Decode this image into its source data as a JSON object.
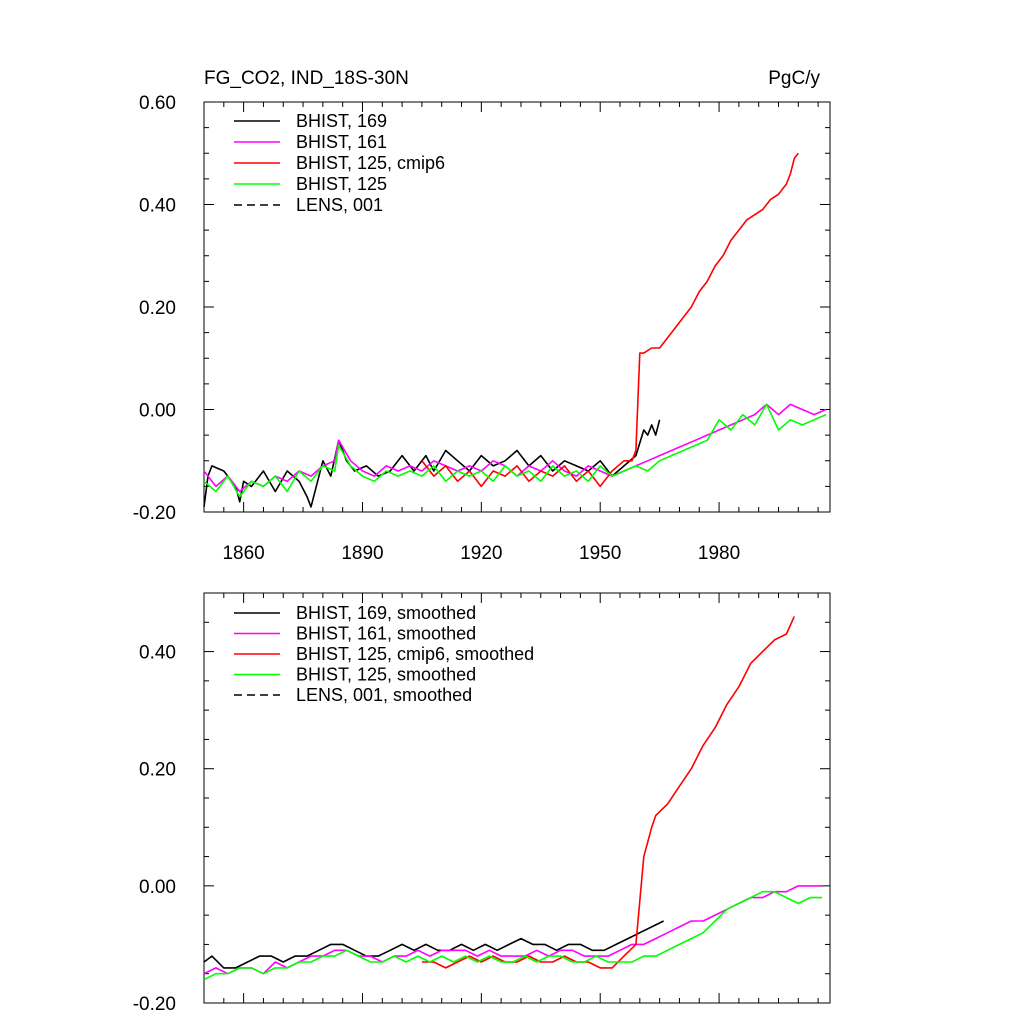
{
  "chart_data": [
    {
      "type": "line",
      "title": "FG_CO2, IND_18S-30N",
      "units": "PgC/y",
      "xlim": [
        1850,
        2008
      ],
      "ylim": [
        -0.2,
        0.6
      ],
      "xticks": [
        1860,
        1890,
        1920,
        1950,
        1980
      ],
      "xtick_labels": [
        "1860",
        "1890",
        "1920",
        "1950",
        "1980"
      ],
      "xticks_labeled": true,
      "yticks": [
        -0.2,
        0.0,
        0.2,
        0.4,
        0.6
      ],
      "ytick_labels": [
        "-0.20",
        "0.00",
        "0.20",
        "0.40",
        "0.60"
      ],
      "series": [
        {
          "name": "BHIST, 169",
          "color": "#000000",
          "dash": false,
          "x": [
            1850,
            1851,
            1852,
            1855,
            1858,
            1859,
            1860,
            1862,
            1865,
            1868,
            1871,
            1874,
            1876,
            1877,
            1880,
            1882,
            1884,
            1886,
            1888,
            1891,
            1894,
            1897,
            1900,
            1903,
            1906,
            1908,
            1911,
            1914,
            1917,
            1920,
            1923,
            1926,
            1929,
            1932,
            1935,
            1938,
            1941,
            1944,
            1947,
            1950,
            1953,
            1956,
            1959,
            1961,
            1962,
            1963,
            1964,
            1965
          ],
          "y": [
            -0.19,
            -0.13,
            -0.11,
            -0.12,
            -0.15,
            -0.18,
            -0.14,
            -0.15,
            -0.12,
            -0.16,
            -0.12,
            -0.14,
            -0.17,
            -0.19,
            -0.1,
            -0.13,
            -0.06,
            -0.1,
            -0.12,
            -0.11,
            -0.13,
            -0.12,
            -0.09,
            -0.12,
            -0.09,
            -0.12,
            -0.08,
            -0.1,
            -0.12,
            -0.09,
            -0.11,
            -0.1,
            -0.08,
            -0.11,
            -0.09,
            -0.12,
            -0.1,
            -0.11,
            -0.12,
            -0.1,
            -0.13,
            -0.11,
            -0.09,
            -0.04,
            -0.05,
            -0.03,
            -0.05,
            -0.02
          ]
        },
        {
          "name": "BHIST, 161",
          "color": "#ff00ff",
          "dash": false,
          "x": [
            1850,
            1853,
            1856,
            1859,
            1862,
            1865,
            1868,
            1871,
            1874,
            1877,
            1880,
            1883,
            1884,
            1887,
            1890,
            1893,
            1896,
            1899,
            1902,
            1905,
            1908,
            1911,
            1914,
            1917,
            1920,
            1923,
            1926,
            1929,
            1932,
            1935,
            1938,
            1941,
            1944,
            1947,
            1950,
            1953,
            1956,
            1959,
            1962,
            1965,
            1968,
            1971,
            1974,
            1977,
            1980,
            1983,
            1986,
            1989,
            1992,
            1995,
            1998,
            2001,
            2004,
            2007
          ],
          "y": [
            -0.12,
            -0.15,
            -0.13,
            -0.16,
            -0.14,
            -0.15,
            -0.13,
            -0.14,
            -0.12,
            -0.13,
            -0.11,
            -0.1,
            -0.06,
            -0.1,
            -0.12,
            -0.13,
            -0.11,
            -0.12,
            -0.11,
            -0.12,
            -0.1,
            -0.11,
            -0.12,
            -0.11,
            -0.12,
            -0.1,
            -0.11,
            -0.13,
            -0.11,
            -0.12,
            -0.1,
            -0.12,
            -0.13,
            -0.11,
            -0.12,
            -0.13,
            -0.12,
            -0.11,
            -0.1,
            -0.09,
            -0.08,
            -0.07,
            -0.06,
            -0.05,
            -0.04,
            -0.03,
            -0.02,
            -0.01,
            0.01,
            -0.01,
            0.01,
            0.0,
            -0.01,
            0.0
          ]
        },
        {
          "name": "BHIST, 125, cmip6",
          "color": "#ff0000",
          "dash": false,
          "x": [
            1905,
            1908,
            1911,
            1914,
            1917,
            1920,
            1923,
            1926,
            1929,
            1932,
            1935,
            1938,
            1941,
            1944,
            1947,
            1950,
            1953,
            1956,
            1958,
            1959,
            1960,
            1961,
            1963,
            1965,
            1967,
            1969,
            1971,
            1973,
            1975,
            1977,
            1979,
            1981,
            1983,
            1985,
            1987,
            1989,
            1991,
            1993,
            1995,
            1997,
            1998,
            1999,
            2000
          ],
          "y": [
            -0.1,
            -0.13,
            -0.11,
            -0.14,
            -0.12,
            -0.15,
            -0.12,
            -0.13,
            -0.11,
            -0.14,
            -0.12,
            -0.13,
            -0.11,
            -0.14,
            -0.12,
            -0.15,
            -0.12,
            -0.1,
            -0.1,
            -0.08,
            0.11,
            0.11,
            0.12,
            0.12,
            0.14,
            0.16,
            0.18,
            0.2,
            0.23,
            0.25,
            0.28,
            0.3,
            0.33,
            0.35,
            0.37,
            0.38,
            0.39,
            0.41,
            0.42,
            0.44,
            0.46,
            0.49,
            0.5
          ]
        },
        {
          "name": "BHIST, 125",
          "color": "#00ff00",
          "dash": false,
          "x": [
            1850,
            1853,
            1856,
            1859,
            1862,
            1865,
            1868,
            1871,
            1874,
            1877,
            1880,
            1883,
            1884,
            1887,
            1890,
            1893,
            1896,
            1899,
            1902,
            1905,
            1908,
            1911,
            1914,
            1917,
            1920,
            1923,
            1926,
            1929,
            1932,
            1935,
            1938,
            1941,
            1944,
            1947,
            1950,
            1953,
            1956,
            1959,
            1962,
            1965,
            1968,
            1971,
            1974,
            1977,
            1980,
            1983,
            1986,
            1989,
            1992,
            1995,
            1998,
            2001,
            2004,
            2007
          ],
          "y": [
            -0.14,
            -0.16,
            -0.13,
            -0.17,
            -0.14,
            -0.15,
            -0.13,
            -0.16,
            -0.12,
            -0.14,
            -0.11,
            -0.12,
            -0.07,
            -0.11,
            -0.13,
            -0.14,
            -0.12,
            -0.13,
            -0.12,
            -0.13,
            -0.11,
            -0.14,
            -0.12,
            -0.13,
            -0.12,
            -0.14,
            -0.11,
            -0.13,
            -0.12,
            -0.14,
            -0.11,
            -0.13,
            -0.12,
            -0.14,
            -0.11,
            -0.13,
            -0.12,
            -0.11,
            -0.12,
            -0.1,
            -0.09,
            -0.08,
            -0.07,
            -0.06,
            -0.02,
            -0.04,
            -0.01,
            -0.03,
            0.01,
            -0.04,
            -0.02,
            -0.03,
            -0.02,
            -0.01
          ]
        },
        {
          "name": "LENS, 001",
          "color": "#000000",
          "dash": true,
          "x": [],
          "y": []
        }
      ]
    },
    {
      "type": "line",
      "title": "",
      "xlim": [
        1850,
        2008
      ],
      "ylim": [
        -0.2,
        0.5
      ],
      "xticks": [
        1860,
        1890,
        1920,
        1950,
        1980
      ],
      "xtick_labels": [],
      "xticks_labeled": false,
      "yticks": [
        -0.2,
        0.0,
        0.2,
        0.4
      ],
      "ytick_labels": [
        "-0.20",
        "0.00",
        "0.20",
        "0.40"
      ],
      "series": [
        {
          "name": "BHIST, 169, smoothed",
          "color": "#000000",
          "dash": false,
          "x": [
            1850,
            1852,
            1855,
            1858,
            1861,
            1864,
            1867,
            1870,
            1873,
            1876,
            1879,
            1882,
            1885,
            1888,
            1891,
            1894,
            1897,
            1900,
            1903,
            1906,
            1909,
            1912,
            1915,
            1918,
            1921,
            1924,
            1927,
            1930,
            1933,
            1936,
            1939,
            1942,
            1945,
            1948,
            1951,
            1954,
            1957,
            1960,
            1963,
            1966
          ],
          "y": [
            -0.13,
            -0.12,
            -0.14,
            -0.14,
            -0.13,
            -0.12,
            -0.12,
            -0.13,
            -0.12,
            -0.12,
            -0.11,
            -0.1,
            -0.1,
            -0.11,
            -0.12,
            -0.12,
            -0.11,
            -0.1,
            -0.11,
            -0.1,
            -0.11,
            -0.11,
            -0.1,
            -0.11,
            -0.1,
            -0.11,
            -0.1,
            -0.09,
            -0.1,
            -0.1,
            -0.11,
            -0.1,
            -0.1,
            -0.11,
            -0.11,
            -0.1,
            -0.09,
            -0.08,
            -0.07,
            -0.06
          ]
        },
        {
          "name": "BHIST, 161, smoothed",
          "color": "#ff00ff",
          "dash": false,
          "x": [
            1850,
            1853,
            1856,
            1859,
            1862,
            1865,
            1868,
            1871,
            1874,
            1877,
            1880,
            1883,
            1886,
            1889,
            1892,
            1895,
            1898,
            1901,
            1904,
            1907,
            1910,
            1913,
            1916,
            1919,
            1922,
            1925,
            1928,
            1931,
            1934,
            1937,
            1940,
            1943,
            1946,
            1949,
            1952,
            1955,
            1958,
            1961,
            1964,
            1967,
            1970,
            1973,
            1976,
            1979,
            1982,
            1985,
            1988,
            1991,
            1994,
            1997,
            2000,
            2003,
            2006
          ],
          "y": [
            -0.15,
            -0.14,
            -0.15,
            -0.14,
            -0.14,
            -0.15,
            -0.13,
            -0.14,
            -0.13,
            -0.12,
            -0.12,
            -0.11,
            -0.11,
            -0.12,
            -0.12,
            -0.13,
            -0.12,
            -0.12,
            -0.11,
            -0.12,
            -0.11,
            -0.11,
            -0.11,
            -0.12,
            -0.11,
            -0.12,
            -0.12,
            -0.12,
            -0.11,
            -0.12,
            -0.11,
            -0.11,
            -0.12,
            -0.12,
            -0.12,
            -0.11,
            -0.1,
            -0.1,
            -0.09,
            -0.08,
            -0.07,
            -0.06,
            -0.06,
            -0.05,
            -0.04,
            -0.03,
            -0.02,
            -0.02,
            -0.01,
            -0.01,
            0.0,
            0.0,
            0.0
          ]
        },
        {
          "name": "BHIST, 125, cmip6, smoothed",
          "color": "#ff0000",
          "dash": false,
          "x": [
            1905,
            1908,
            1911,
            1914,
            1917,
            1920,
            1923,
            1926,
            1929,
            1932,
            1935,
            1938,
            1941,
            1944,
            1947,
            1950,
            1953,
            1956,
            1959,
            1961,
            1963,
            1964,
            1967,
            1970,
            1973,
            1976,
            1979,
            1982,
            1985,
            1988,
            1991,
            1994,
            1997,
            1999
          ],
          "y": [
            -0.13,
            -0.13,
            -0.14,
            -0.13,
            -0.12,
            -0.13,
            -0.12,
            -0.13,
            -0.13,
            -0.12,
            -0.13,
            -0.13,
            -0.12,
            -0.13,
            -0.13,
            -0.14,
            -0.14,
            -0.12,
            -0.1,
            0.05,
            0.1,
            0.12,
            0.14,
            0.17,
            0.2,
            0.24,
            0.27,
            0.31,
            0.34,
            0.38,
            0.4,
            0.42,
            0.43,
            0.46
          ]
        },
        {
          "name": "BHIST, 125, smoothed",
          "color": "#00ff00",
          "dash": false,
          "x": [
            1850,
            1853,
            1856,
            1859,
            1862,
            1865,
            1868,
            1871,
            1874,
            1877,
            1880,
            1883,
            1886,
            1889,
            1892,
            1895,
            1898,
            1901,
            1904,
            1907,
            1910,
            1913,
            1916,
            1919,
            1922,
            1925,
            1928,
            1931,
            1934,
            1937,
            1940,
            1943,
            1946,
            1949,
            1952,
            1955,
            1958,
            1961,
            1964,
            1967,
            1970,
            1973,
            1976,
            1979,
            1982,
            1985,
            1988,
            1991,
            1994,
            1997,
            2000,
            2003,
            2006
          ],
          "y": [
            -0.16,
            -0.15,
            -0.15,
            -0.14,
            -0.14,
            -0.15,
            -0.14,
            -0.14,
            -0.13,
            -0.13,
            -0.12,
            -0.12,
            -0.11,
            -0.12,
            -0.13,
            -0.13,
            -0.12,
            -0.13,
            -0.12,
            -0.13,
            -0.12,
            -0.13,
            -0.12,
            -0.13,
            -0.12,
            -0.13,
            -0.13,
            -0.12,
            -0.13,
            -0.12,
            -0.12,
            -0.13,
            -0.13,
            -0.12,
            -0.13,
            -0.13,
            -0.13,
            -0.12,
            -0.12,
            -0.11,
            -0.1,
            -0.09,
            -0.08,
            -0.06,
            -0.04,
            -0.03,
            -0.02,
            -0.01,
            -0.01,
            -0.02,
            -0.03,
            -0.02,
            -0.02
          ]
        },
        {
          "name": "LENS, 001, smoothed",
          "color": "#000000",
          "dash": true,
          "x": [],
          "y": []
        }
      ]
    }
  ]
}
